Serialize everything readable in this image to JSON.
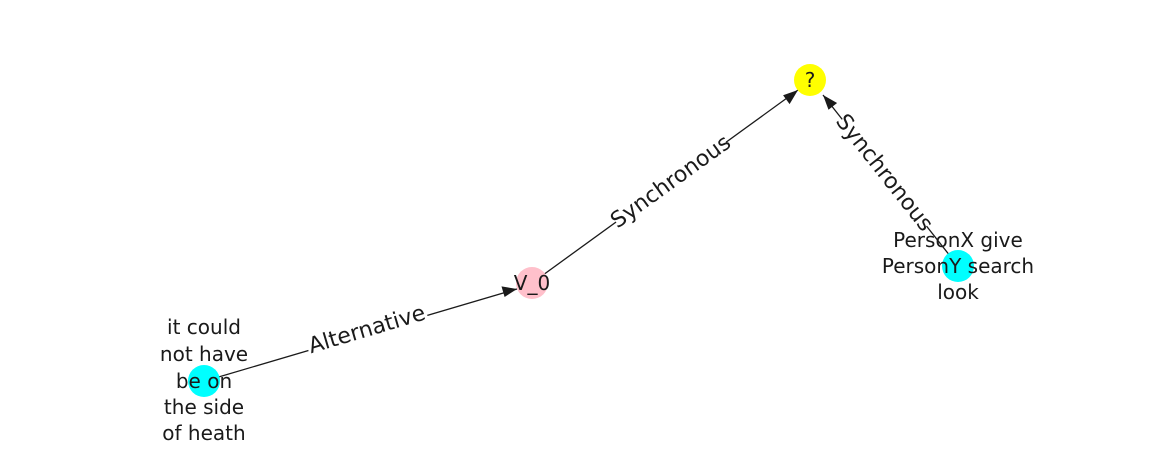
{
  "graph": {
    "nodes": {
      "q": {
        "label": "?",
        "color": "#ffff00"
      },
      "v0": {
        "label": "V_0",
        "color": "#ffc0cb"
      },
      "personx": {
        "label_lines": [
          "PersonX give",
          "PersonY search",
          "look"
        ],
        "color": "#00ffff"
      },
      "heath": {
        "label_lines": [
          "it could",
          "not have",
          "be on",
          "the side",
          "of heath"
        ],
        "color": "#00ffff"
      }
    },
    "edges": {
      "heath_v0": {
        "label": "Alternative"
      },
      "v0_q": {
        "label": "Synchronous"
      },
      "personx_q": {
        "label": "Synchronous"
      }
    }
  }
}
